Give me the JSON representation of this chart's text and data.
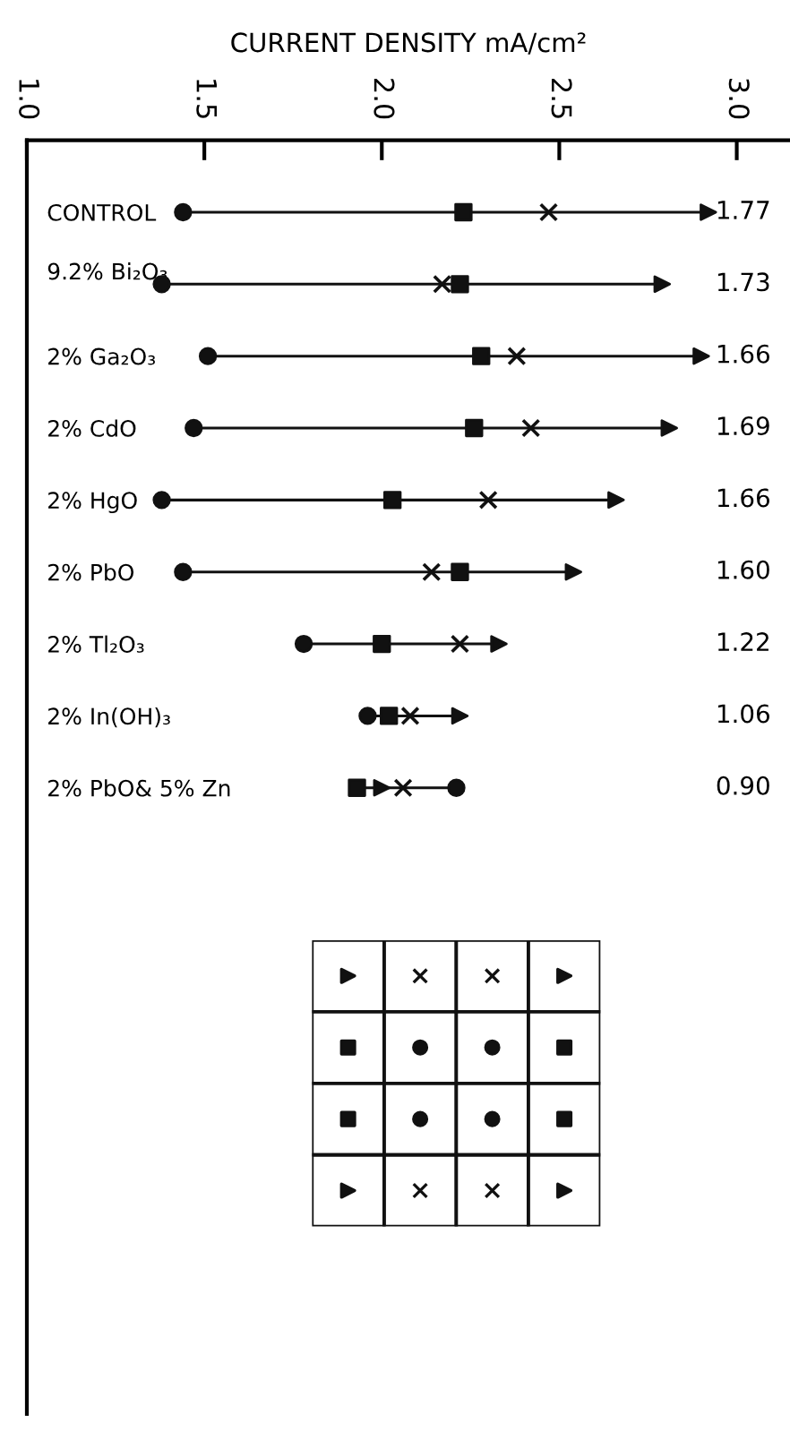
{
  "chart_data": {
    "type": "scatter",
    "orientation": "horizontal",
    "xlabel": "CURRENT DENSITY mA/cm²",
    "categories": [
      "CONTROL",
      "9.2% Bi₂O₃",
      "2% Ga₂O₃",
      "2% CdO",
      "2% HgO",
      "2% PbO",
      "2% Tl₂O₃",
      "2% In(OH)₃",
      "2% PbO& 5% Zn"
    ],
    "series": [
      {
        "color": "#111111",
        "marker": "circle",
        "values": [
          1.44,
          1.38,
          1.51,
          1.47,
          1.38,
          1.44,
          1.78,
          1.96,
          2.21
        ]
      },
      {
        "color": "#111111",
        "marker": "square",
        "values": [
          2.23,
          2.22,
          2.28,
          2.26,
          2.03,
          2.22,
          2.0,
          2.02,
          1.93
        ]
      },
      {
        "color": "#111111",
        "marker": "cross",
        "values": [
          2.47,
          2.17,
          2.38,
          2.42,
          2.3,
          2.14,
          2.22,
          2.08,
          2.06
        ]
      },
      {
        "color": "#111111",
        "marker": "triangle",
        "values": [
          2.92,
          2.79,
          2.9,
          2.81,
          2.66,
          2.54,
          2.33,
          2.22,
          2.0
        ]
      }
    ],
    "xlim": [
      1.0,
      3.15
    ],
    "xticks": [
      {
        "value": 1.0,
        "label": "1.0"
      },
      1.5,
      {
        "value": 2.0,
        "label": "2.0"
      },
      2.5,
      {
        "value": 3.0,
        "label": "3.0"
      }
    ],
    "annotations": [
      "1.77",
      "1.73",
      "1.66",
      "1.69",
      "1.66",
      "1.60",
      "1.22",
      "1.06",
      "0.90"
    ],
    "grid": false,
    "legend": false
  }
}
